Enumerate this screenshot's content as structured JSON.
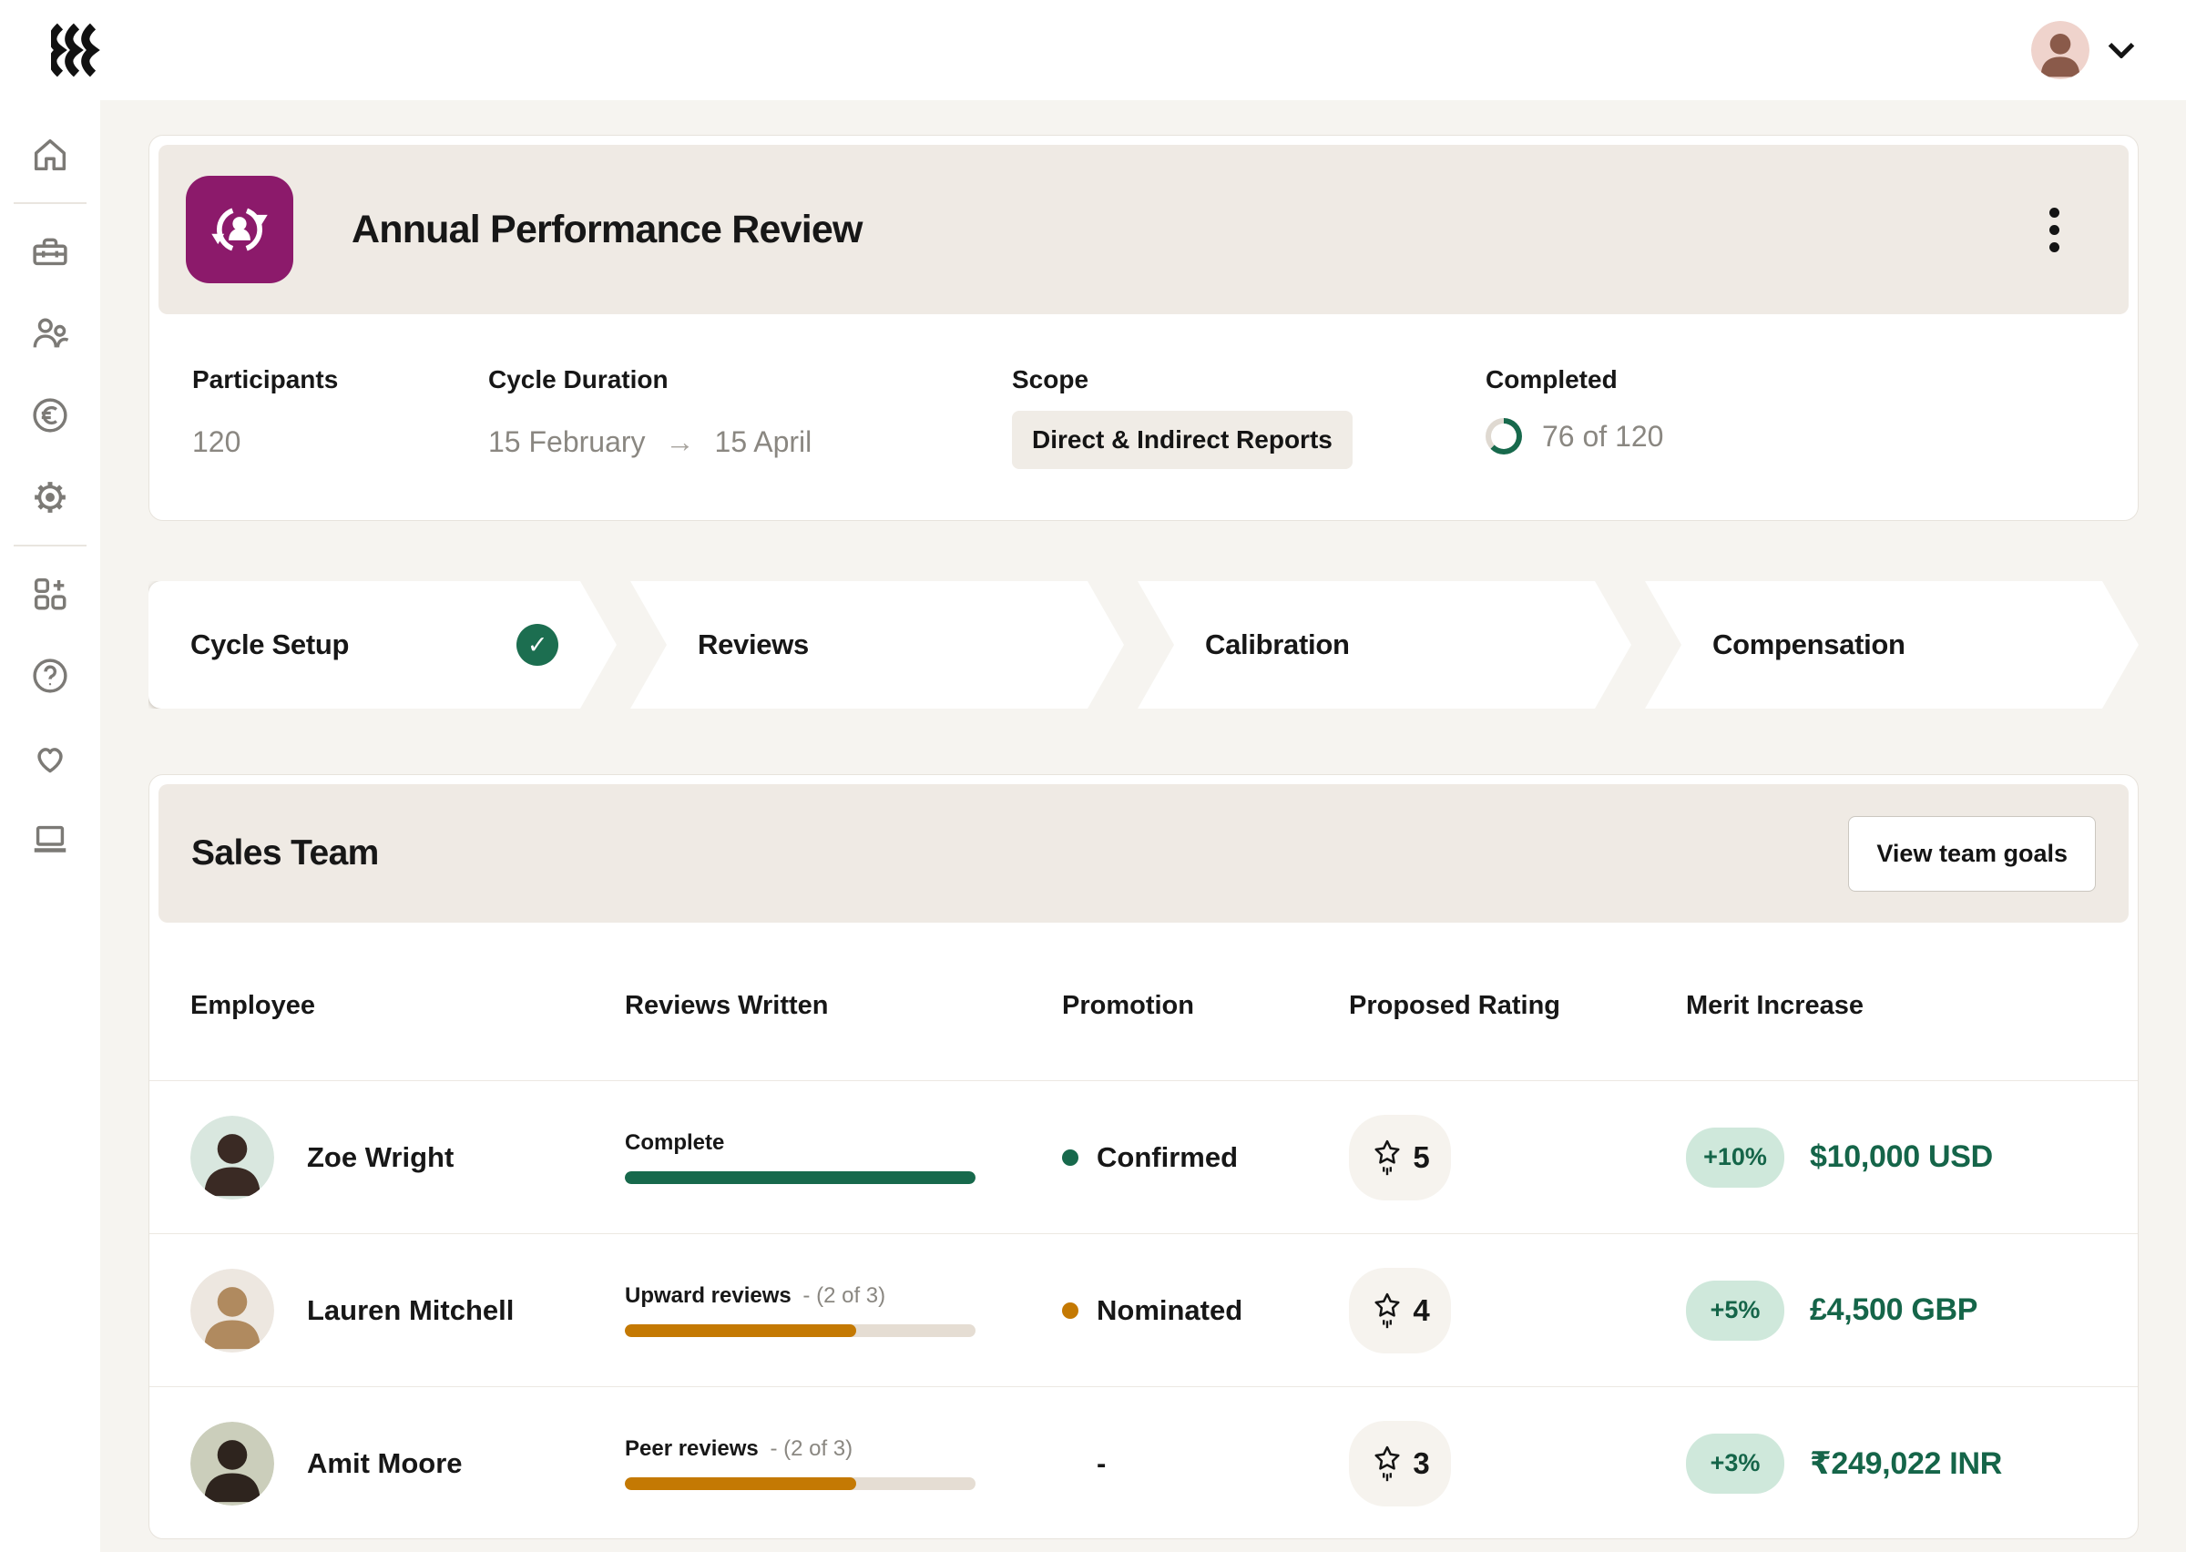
{
  "topbar": {
    "logo_name": "rippling-marks",
    "user": {
      "avatar_bg": "#EFD3CC",
      "avatar_fg": "#8A5A4A"
    }
  },
  "sidebar": {
    "items": [
      {
        "id": "home"
      },
      {
        "id": "toolbox"
      },
      {
        "id": "people"
      },
      {
        "id": "euro"
      },
      {
        "id": "settings"
      },
      {
        "id": "apps-add"
      },
      {
        "id": "help"
      },
      {
        "id": "favorites"
      },
      {
        "id": "device"
      }
    ]
  },
  "review_card": {
    "title": "Annual Performance Review",
    "stats": {
      "participants": {
        "label": "Participants",
        "value": "120"
      },
      "cycle_duration": {
        "label": "Cycle Duration",
        "start": "15 February",
        "arrow": "→",
        "end": "15 April"
      },
      "scope": {
        "label": "Scope",
        "value": "Direct & Indirect Reports"
      },
      "completed": {
        "label": "Completed",
        "value": "76 of 120",
        "percent": 63
      }
    }
  },
  "stepper": {
    "steps": [
      {
        "label": "Cycle Setup",
        "complete": true,
        "check_glyph": "✓"
      },
      {
        "label": "Reviews",
        "complete": false
      },
      {
        "label": "Calibration",
        "complete": false
      },
      {
        "label": "Compensation",
        "complete": false
      }
    ]
  },
  "team_section": {
    "title": "Sales Team",
    "button_label": "View team goals",
    "columns": [
      "Employee",
      "Reviews Written",
      "Promotion",
      "Proposed Rating",
      "Merit Increase"
    ],
    "rows": [
      {
        "name": "Zoe Wright",
        "avatar_bg": "#D9E7DF",
        "avatar_fg": "#3A2A24",
        "review_label": "Complete",
        "review_detail": "",
        "progress": 100,
        "progress_color": "#17694C",
        "promotion": "Confirmed",
        "promotion_color": "#17694C",
        "rating": "5",
        "merit_pct": "+10%",
        "amount": "$10,000 USD"
      },
      {
        "name": "Lauren Mitchell",
        "avatar_bg": "#EDE7E0",
        "avatar_fg": "#B08A5F",
        "review_label": "Upward reviews",
        "review_detail": "- (2 of 3)",
        "progress": 66,
        "progress_color": "#C47903",
        "promotion": "Nominated",
        "promotion_color": "#C47903",
        "rating": "4",
        "merit_pct": "+5%",
        "amount": "£4,500 GBP"
      },
      {
        "name": "Amit Moore",
        "avatar_bg": "#CBCEBB",
        "avatar_fg": "#2E241E",
        "review_label": "Peer reviews",
        "review_detail": "- (2 of 3)",
        "progress": 66,
        "progress_color": "#C47903",
        "promotion": "-",
        "promotion_color": "",
        "rating": "3",
        "merit_pct": "+3%",
        "amount": "₹249,022 INR"
      }
    ]
  },
  "colors": {
    "green": "#17694C",
    "orange": "#C47903",
    "purple": "#8C1A6B",
    "ring_track": "#DFD9D1",
    "badge_bg": "#CFE8DB",
    "band_bg": "#EFEAE4",
    "page_bg": "#F6F4F0"
  }
}
